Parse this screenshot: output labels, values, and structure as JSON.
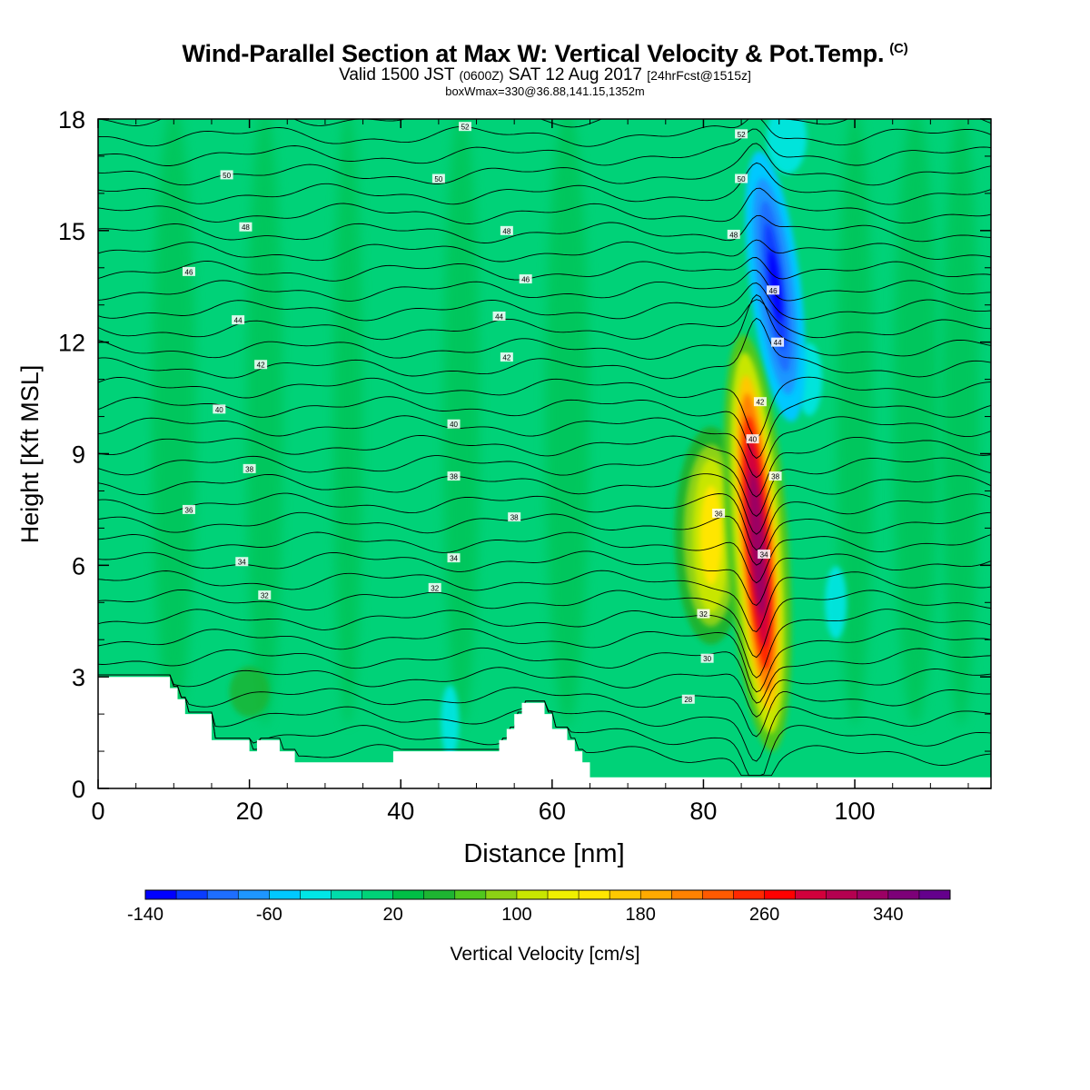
{
  "title": {
    "main": "Wind-Parallel Section at Max W: Vertical Velocity & Pot.Temp.",
    "copyright": "(C)",
    "valid_prefix": "Valid 1500 JST",
    "valid_utc": "(0600Z)",
    "valid_date": "SAT 12 Aug 2017",
    "forecast": "[24hrFcst@1515z]",
    "box": "boxWmax=330@36.88,141.15,1352m"
  },
  "chart_data": {
    "type": "heatmap",
    "xlabel": "Distance [nm]",
    "ylabel": "Height [Kft MSL]",
    "xlim": [
      0,
      118
    ],
    "ylim": [
      0,
      18
    ],
    "x_ticks": [
      0,
      20,
      40,
      60,
      80,
      100
    ],
    "y_ticks": [
      0,
      3,
      6,
      9,
      12,
      15,
      18
    ],
    "grid": false,
    "colorbar": {
      "label": "Vertical Velocity [cm/s]",
      "min": -140,
      "max": 380,
      "step": 20,
      "tick_labels": [
        "-140",
        "-60",
        "20",
        "100",
        "180",
        "260",
        "340"
      ],
      "colors": [
        "#0000ff",
        "#0a3cff",
        "#1e6eff",
        "#1e96ff",
        "#00c8ff",
        "#00e6e6",
        "#00dcaa",
        "#00d278",
        "#00be46",
        "#1eb432",
        "#50c81e",
        "#8cd214",
        "#c8e600",
        "#f0f000",
        "#ffe600",
        "#ffc800",
        "#ffaa00",
        "#ff8200",
        "#ff5a00",
        "#ff2800",
        "#ff0000",
        "#d2003c",
        "#b40050",
        "#9b0064",
        "#7d0078",
        "#64008c"
      ]
    },
    "updraft_core": {
      "x_nm": 87,
      "height_kft": [
        1.5,
        11.5
      ],
      "peak_cm_s": 330
    },
    "downdraft_core": {
      "x_nm": 89.5,
      "height_kft": [
        11,
        16
      ],
      "min_cm_s": -120
    },
    "terrain_profile": {
      "x_nm": [
        0,
        8.5,
        9.5,
        10.5,
        11.5,
        13,
        15,
        19,
        20,
        21,
        24,
        26,
        38,
        39,
        51,
        53,
        54,
        55,
        56,
        58,
        59,
        60,
        62,
        63,
        64,
        65,
        118
      ],
      "height_kft": [
        3.0,
        3.0,
        2.7,
        2.4,
        2.0,
        2.0,
        1.3,
        1.3,
        1.0,
        1.3,
        1.0,
        0.7,
        0.7,
        1.0,
        1.0,
        1.3,
        1.6,
        2.0,
        2.3,
        2.3,
        2.0,
        1.6,
        1.3,
        1.0,
        0.7,
        0.3,
        0.3
      ]
    },
    "isentropes": [
      {
        "label": "28",
        "height_kft": 2.4,
        "label_x_nm": 78
      },
      {
        "label": "30",
        "height_kft": 3.5,
        "label_x_nm": 80.5
      },
      {
        "label": "32",
        "height_kft": 4.7,
        "label_x_nm": 80
      },
      {
        "label": "32",
        "height_kft": 5.2,
        "label_x_nm": 22
      },
      {
        "label": "32",
        "height_kft": 5.4,
        "label_x_nm": 44.5
      },
      {
        "label": "34",
        "height_kft": 6.1,
        "label_x_nm": 19
      },
      {
        "label": "34",
        "height_kft": 6.2,
        "label_x_nm": 47
      },
      {
        "label": "36",
        "height_kft": 7.5,
        "label_x_nm": 12
      },
      {
        "label": "38",
        "height_kft": 8.4,
        "label_x_nm": 47
      },
      {
        "label": "38",
        "height_kft": 7.3,
        "label_x_nm": 55
      },
      {
        "label": "38",
        "height_kft": 8.6,
        "label_x_nm": 20
      },
      {
        "label": "40",
        "height_kft": 10.2,
        "label_x_nm": 16
      },
      {
        "label": "40",
        "height_kft": 9.8,
        "label_x_nm": 47
      },
      {
        "label": "42",
        "height_kft": 11.4,
        "label_x_nm": 21.5
      },
      {
        "label": "42",
        "height_kft": 11.6,
        "label_x_nm": 54
      },
      {
        "label": "44",
        "height_kft": 12.6,
        "label_x_nm": 18.5
      },
      {
        "label": "44",
        "height_kft": 12.7,
        "label_x_nm": 53
      },
      {
        "label": "46",
        "height_kft": 13.9,
        "label_x_nm": 12
      },
      {
        "label": "46",
        "height_kft": 13.7,
        "label_x_nm": 56.5
      },
      {
        "label": "48",
        "height_kft": 15.1,
        "label_x_nm": 19.5
      },
      {
        "label": "48",
        "height_kft": 15.0,
        "label_x_nm": 54
      },
      {
        "label": "48",
        "height_kft": 14.9,
        "label_x_nm": 84
      },
      {
        "label": "50",
        "height_kft": 16.5,
        "label_x_nm": 17
      },
      {
        "label": "50",
        "height_kft": 16.4,
        "label_x_nm": 45
      },
      {
        "label": "50",
        "height_kft": 16.4,
        "label_x_nm": 85
      },
      {
        "label": "52",
        "height_kft": 17.8,
        "label_x_nm": 48.5
      },
      {
        "label": "52",
        "height_kft": 17.6,
        "label_x_nm": 85
      }
    ],
    "core_labels": [
      {
        "label": "46",
        "x_nm": 89.2,
        "height_kft": 13.4
      },
      {
        "label": "44",
        "x_nm": 89.8,
        "height_kft": 12.0
      },
      {
        "label": "42",
        "x_nm": 87.5,
        "height_kft": 10.4
      },
      {
        "label": "40",
        "x_nm": 86.5,
        "height_kft": 9.4
      },
      {
        "label": "38",
        "x_nm": 89.5,
        "height_kft": 8.4
      },
      {
        "label": "36",
        "x_nm": 82,
        "height_kft": 7.4
      },
      {
        "label": "34",
        "x_nm": 88,
        "height_kft": 6.3
      }
    ]
  }
}
